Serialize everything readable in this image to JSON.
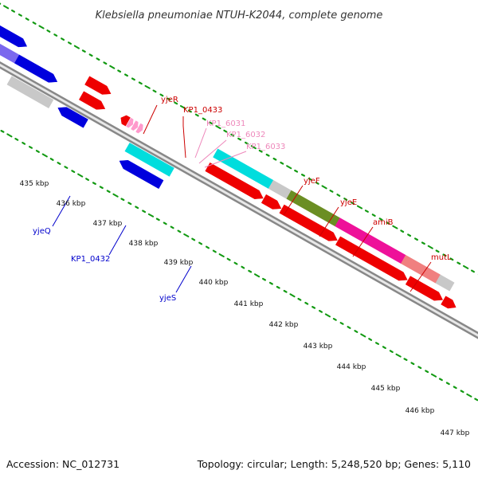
{
  "title": "Klebsiella pneumoniae NTUH-K2044, complete genome",
  "footer": {
    "accession": "Accession: NC_012731",
    "topology": "Topology: circular; Length: 5,248,520 bp; Genes: 5,110"
  },
  "kbp_labels": [
    "435 kbp",
    "436 kbp",
    "437 kbp",
    "438 kbp",
    "439 kbp",
    "440 kbp",
    "441 kbp",
    "442 kbp",
    "443 kbp",
    "444 kbp",
    "445 kbp",
    "446 kbp",
    "447 kbp"
  ],
  "gene_labels": {
    "yjeR": "yjeR",
    "KP1_0433": "KP1_0433",
    "KP1_6031": "KP1_6031",
    "KP1_6032": "KP1_6032",
    "KP1_6033": "KP1_6033",
    "yjeF": "yjeF",
    "yjeE": "yjeE",
    "amiB": "amiB",
    "mutL": "mutL",
    "yjeQ": "yjeQ",
    "KP1_0432": "KP1_0432",
    "yjeS": "yjeS"
  },
  "colors": {
    "red": "#ee0000",
    "blue": "#0000dd",
    "cyan": "#00dddd",
    "olive": "#6b8e23",
    "magenta": "#ee1199",
    "pink": "#ff99cc",
    "salmon": "#f08080",
    "gray": "#c8c8c8",
    "violet": "#7b68ee",
    "tick_green": "#119911",
    "dark_red_label": "#cc0000",
    "blue_label": "#0000cc",
    "pink_label": "#ee88bb"
  }
}
